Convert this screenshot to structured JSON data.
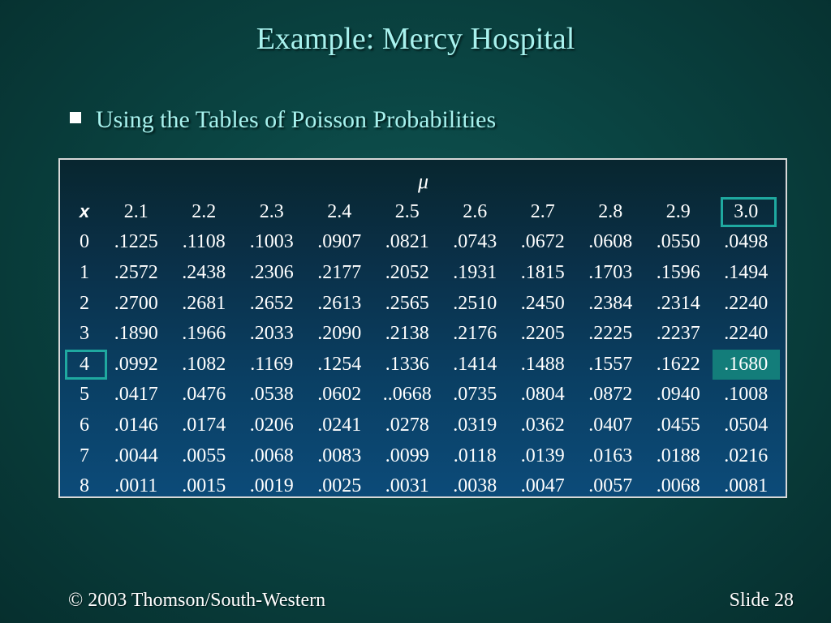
{
  "title": "Example:  Mercy Hospital",
  "bullet": "Using the Tables of Poisson Probabilities",
  "table": {
    "mu_symbol": "μ",
    "x_label": "x",
    "mu_values": [
      "2.1",
      "2.2",
      "2.3",
      "2.4",
      "2.5",
      "2.6",
      "2.7",
      "2.8",
      "2.9",
      "3.0"
    ],
    "rows": [
      {
        "x": "0",
        "values": [
          ".1225",
          ".1108",
          ".1003",
          ".0907",
          ".0821",
          ".0743",
          ".0672",
          ".0608",
          ".0550",
          ".0498"
        ]
      },
      {
        "x": "1",
        "values": [
          ".2572",
          ".2438",
          ".2306",
          ".2177",
          ".2052",
          ".1931",
          ".1815",
          ".1703",
          ".1596",
          ".1494"
        ]
      },
      {
        "x": "2",
        "values": [
          ".2700",
          ".2681",
          ".2652",
          ".2613",
          ".2565",
          ".2510",
          ".2450",
          ".2384",
          ".2314",
          ".2240"
        ]
      },
      {
        "x": "3",
        "values": [
          ".1890",
          ".1966",
          ".2033",
          ".2090",
          ".2138",
          ".2176",
          ".2205",
          ".2225",
          ".2237",
          ".2240"
        ]
      },
      {
        "x": "4",
        "values": [
          ".0992",
          ".1082",
          ".1169",
          ".1254",
          ".1336",
          ".1414",
          ".1488",
          ".1557",
          ".1622",
          ".1680"
        ]
      },
      {
        "x": "5",
        "values": [
          ".0417",
          ".0476",
          ".0538",
          ".0602",
          "..0668",
          ".0735",
          ".0804",
          ".0872",
          ".0940",
          ".1008"
        ]
      },
      {
        "x": "6",
        "values": [
          ".0146",
          ".0174",
          ".0206",
          ".0241",
          ".0278",
          ".0319",
          ".0362",
          ".0407",
          ".0455",
          ".0504"
        ]
      },
      {
        "x": "7",
        "values": [
          ".0044",
          ".0055",
          ".0068",
          ".0083",
          ".0099",
          ".0118",
          ".0139",
          ".0163",
          ".0188",
          ".0216"
        ]
      },
      {
        "x": "8",
        "values": [
          ".0011",
          ".0015",
          ".0019",
          ".0025",
          ".0031",
          ".0038",
          ".0047",
          ".0057",
          ".0068",
          ".0081"
        ]
      }
    ],
    "highlight": {
      "x": "4",
      "mu": "3.0",
      "value": ".1680"
    }
  },
  "footer": {
    "copyright": "© 2003  Thomson/South-Western",
    "slide": "Slide 28"
  },
  "colors": {
    "background": "#0a4442",
    "title": "#a8f2ee",
    "highlight": "#137d7a",
    "box": "#1fa9a0"
  }
}
